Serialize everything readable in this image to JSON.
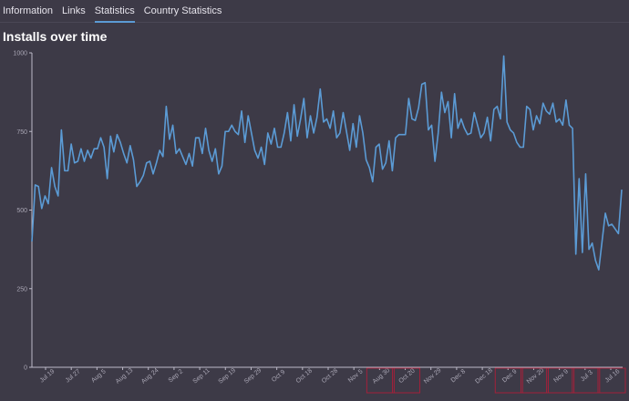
{
  "tabs": [
    {
      "label": "Information"
    },
    {
      "label": "Links"
    },
    {
      "label": "Statistics"
    },
    {
      "label": "Country Statistics"
    }
  ],
  "active_tab": 2,
  "chart_title": "Installs over time",
  "colors": {
    "line": "#5b9bd5",
    "axis": "#bdbac8",
    "highlight": "#a3203a"
  },
  "chart_data": {
    "type": "line",
    "title": "Installs over time",
    "xlabel": "",
    "ylabel": "",
    "ylim": [
      0,
      1000
    ],
    "yticks": [
      0,
      250,
      500,
      750,
      1000
    ],
    "xtick_labels": [
      "Jul 19",
      "Jul 27",
      "Aug 5",
      "Aug 13",
      "Aug 24",
      "Sep 2",
      "Sep 11",
      "Sep 19",
      "Sep 29",
      "Oct 9",
      "Oct 18",
      "Oct 28",
      "Nov 5",
      "Aug 30",
      "Oct 20",
      "Nov 29",
      "Dec 8",
      "Dec 18",
      "Dec 9",
      "Nov 20",
      "Nov 9",
      "Jul 3",
      "Jul 16"
    ],
    "highlighted_ticks": [
      "Aug 30",
      "Oct 20",
      "Dec 9",
      "Nov 20",
      "Nov 9",
      "Jul 3",
      "Jul 16"
    ],
    "series": [
      {
        "name": "Installs",
        "values": [
          400,
          580,
          575,
          505,
          545,
          520,
          635,
          575,
          545,
          755,
          625,
          625,
          710,
          650,
          655,
          695,
          655,
          690,
          665,
          695,
          695,
          730,
          700,
          600,
          735,
          685,
          740,
          715,
          680,
          650,
          705,
          660,
          575,
          590,
          610,
          650,
          655,
          615,
          650,
          690,
          670,
          830,
          725,
          770,
          680,
          695,
          670,
          645,
          680,
          640,
          730,
          730,
          680,
          760,
          690,
          655,
          695,
          615,
          640,
          750,
          750,
          770,
          750,
          740,
          815,
          715,
          800,
          745,
          690,
          665,
          700,
          645,
          745,
          710,
          760,
          700,
          700,
          745,
          810,
          720,
          835,
          735,
          790,
          855,
          730,
          800,
          745,
          795,
          885,
          780,
          790,
          760,
          815,
          730,
          745,
          810,
          750,
          690,
          775,
          700,
          800,
          745,
          660,
          635,
          590,
          700,
          710,
          630,
          650,
          720,
          625,
          730,
          740,
          740,
          740,
          855,
          790,
          785,
          825,
          900,
          905,
          755,
          770,
          655,
          745,
          875,
          810,
          845,
          730,
          870,
          760,
          790,
          760,
          740,
          745,
          810,
          770,
          730,
          745,
          795,
          720,
          820,
          830,
          790,
          990,
          780,
          755,
          745,
          715,
          700,
          700,
          830,
          820,
          755,
          800,
          775,
          840,
          815,
          805,
          840,
          780,
          790,
          770,
          850,
          770,
          760,
          360,
          600,
          365,
          615,
          375,
          395,
          340,
          310,
          400,
          490,
          450,
          455,
          440,
          425,
          565
        ]
      }
    ]
  }
}
